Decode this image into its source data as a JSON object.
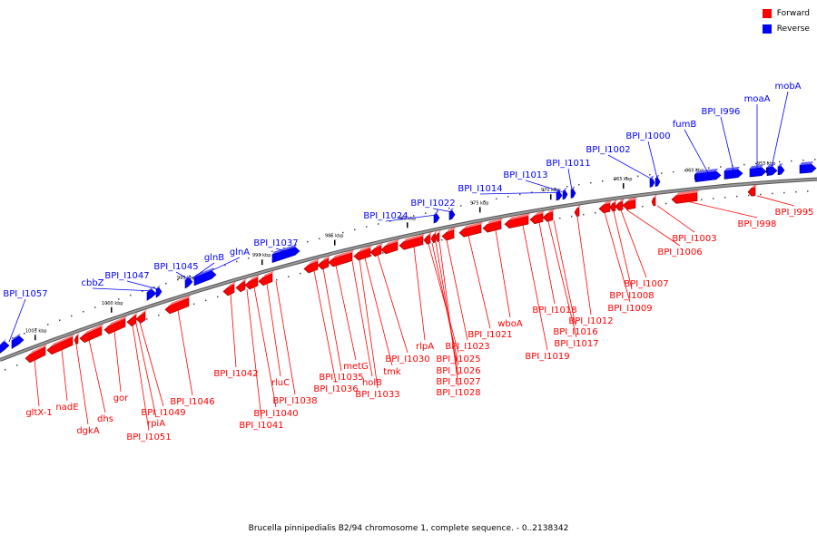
{
  "legend": {
    "forward_label": "Forward",
    "reverse_label": "Reverse",
    "forward_color": "#ff0000",
    "reverse_color": "#0000ff"
  },
  "caption": "Brucella pinnipedialis B2/94 chromosome 1, complete sequence. - 0..2138342",
  "ticks": [
    "1005 kbp",
    "1000 kbp",
    "995 kbp",
    "990 kbp",
    "985 kbp",
    "980 kbp",
    "975 kbp",
    "970 kbp",
    "965 kbp",
    "960 kbp",
    "955 kbp"
  ],
  "reverse_genes": [
    "BPI_I1057",
    "cbbZ",
    "BPI_I1047",
    "BPI_I1045",
    "glnB",
    "glnA",
    "BPI_I1037",
    "BPI_I1024",
    "BPI_I1022",
    "BPI_I1014",
    "BPI_I1013",
    "BPI_I1011",
    "BPI_I1002",
    "BPI_I1000",
    "fumB",
    "BPI_I996",
    "moaA",
    "mobA"
  ],
  "forward_genes": [
    "gltX-1",
    "nadE",
    "dgkA",
    "dhs",
    "gor",
    "rpiA",
    "BPI_I1049",
    "BPI_I1051",
    "BPI_I1046",
    "BPI_I1042",
    "BPI_I1041",
    "BPI_I1040",
    "rluC",
    "BPI_I1038",
    "BPI_I1036",
    "BPI_I1035",
    "metG",
    "holB",
    "BPI_I1033",
    "tmk",
    "BPI_I1030",
    "rlpA",
    "BPI_I1025",
    "BPI_I1026",
    "BPI_I1027",
    "BPI_I1028",
    "BPI_I1023",
    "BPI_I1021",
    "wboA",
    "BPI_I1019",
    "BPI_I1018",
    "BPI_I1017",
    "BPI_I1016",
    "BPI_I1012",
    "BPI_I1009",
    "BPI_I1008",
    "BPI_I1007",
    "BPI_I1006",
    "BPI_I1003",
    "BPI_I998",
    "BPI_I995"
  ]
}
